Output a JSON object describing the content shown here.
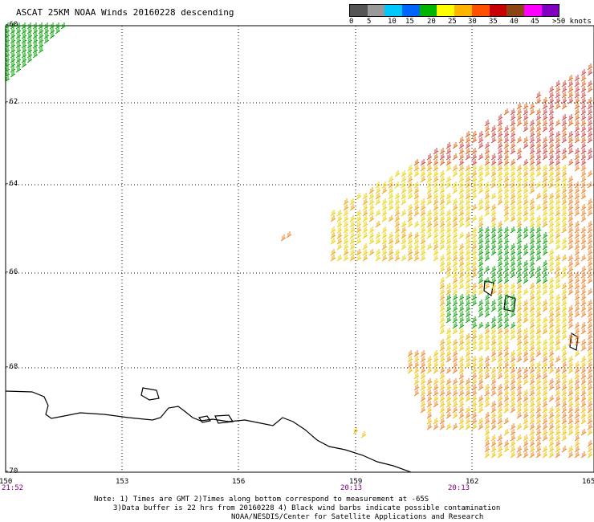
{
  "title": "ASCAT 25KM NOAA Winds 20160228 descending",
  "legend": {
    "labels": [
      "0",
      "5",
      "10",
      "15",
      "20",
      "25",
      "30",
      "35",
      "40",
      "45",
      ">50 knots"
    ],
    "colors": [
      "#555555",
      "#9a9a9a",
      "#00c8ff",
      "#0064ff",
      "#00b400",
      "#ffff00",
      "#ffb400",
      "#ff5000",
      "#c80000",
      "#8b4513",
      "#ff00ff",
      "#8000c0"
    ]
  },
  "latitude_labels": [
    "-60",
    "-62",
    "-64",
    "-66",
    "-68",
    "-70"
  ],
  "longitude_labels": [
    "150",
    "153",
    "156",
    "159",
    "162",
    "165"
  ],
  "time_labels": [
    "21:52",
    "20:13",
    "20:13"
  ],
  "notes": [
    "Note: 1) Times are GMT 2)Times along bottom correspond to measurement at -65S",
    "3)Data buffer is 22 hrs from 20160228 4) Black wind barbs indicate possible contamination",
    "NOAA/NESDIS/Center for Satellite Applications and Research"
  ]
}
